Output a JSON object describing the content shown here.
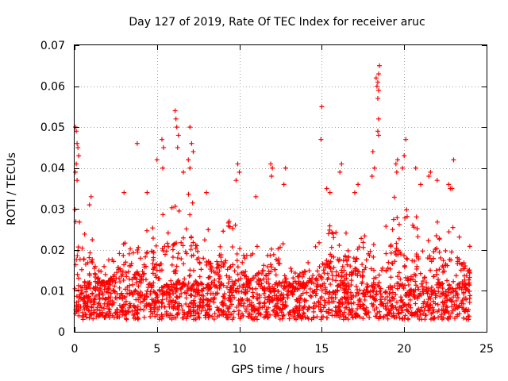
{
  "chart_data": {
    "type": "scatter",
    "title": "Day 127 of 2019, Rate Of TEC Index for receiver aruc",
    "xlabel": "GPS time / hours",
    "ylabel": "ROTI / TECUs",
    "xlim": [
      0,
      25
    ],
    "ylim": [
      0,
      0.07
    ],
    "x_ticks": [
      "0",
      "5",
      "10",
      "15",
      "20",
      "25"
    ],
    "y_ticks": [
      "0",
      "0.01",
      "0.02",
      "0.03",
      "0.04",
      "0.05",
      "0.06",
      "0.07"
    ],
    "grid": true,
    "marker": "+",
    "color": "#ff0000",
    "coverage_x": [
      0,
      24
    ],
    "baseline_band": [
      0.003,
      0.012
    ],
    "envelope": [
      [
        0.0,
        0.035
      ],
      [
        0.5,
        0.03
      ],
      [
        1.0,
        0.028
      ],
      [
        1.5,
        0.018
      ],
      [
        2.0,
        0.017
      ],
      [
        2.5,
        0.022
      ],
      [
        3.0,
        0.025
      ],
      [
        3.5,
        0.024
      ],
      [
        4.0,
        0.02
      ],
      [
        4.5,
        0.03
      ],
      [
        5.0,
        0.027
      ],
      [
        5.5,
        0.031
      ],
      [
        6.0,
        0.032
      ],
      [
        6.5,
        0.033
      ],
      [
        7.0,
        0.034
      ],
      [
        7.5,
        0.03
      ],
      [
        8.0,
        0.026
      ],
      [
        8.5,
        0.025
      ],
      [
        9.0,
        0.028
      ],
      [
        9.5,
        0.027
      ],
      [
        10.0,
        0.03
      ],
      [
        10.5,
        0.018
      ],
      [
        11.0,
        0.021
      ],
      [
        11.5,
        0.024
      ],
      [
        12.0,
        0.032
      ],
      [
        12.5,
        0.025
      ],
      [
        13.0,
        0.016
      ],
      [
        13.5,
        0.014
      ],
      [
        14.0,
        0.016
      ],
      [
        14.5,
        0.02
      ],
      [
        15.0,
        0.025
      ],
      [
        15.5,
        0.026
      ],
      [
        16.0,
        0.028
      ],
      [
        16.5,
        0.027
      ],
      [
        17.0,
        0.026
      ],
      [
        17.5,
        0.024
      ],
      [
        18.0,
        0.03
      ],
      [
        18.5,
        0.028
      ],
      [
        19.0,
        0.029
      ],
      [
        19.5,
        0.034
      ],
      [
        20.0,
        0.031
      ],
      [
        20.5,
        0.03
      ],
      [
        21.0,
        0.028
      ],
      [
        21.5,
        0.03
      ],
      [
        22.0,
        0.029
      ],
      [
        22.5,
        0.026
      ],
      [
        23.0,
        0.027
      ],
      [
        23.5,
        0.025
      ],
      [
        24.0,
        0.022
      ]
    ],
    "outliers": [
      {
        "x": 0.05,
        "y": 0.05
      },
      {
        "x": 0.1,
        "y": 0.049
      },
      {
        "x": 0.15,
        "y": 0.046
      },
      {
        "x": 0.2,
        "y": 0.045
      },
      {
        "x": 0.25,
        "y": 0.043
      },
      {
        "x": 0.1,
        "y": 0.041
      },
      {
        "x": 0.05,
        "y": 0.039
      },
      {
        "x": 0.15,
        "y": 0.037
      },
      {
        "x": 1.0,
        "y": 0.033
      },
      {
        "x": 0.9,
        "y": 0.031
      },
      {
        "x": 3.0,
        "y": 0.034
      },
      {
        "x": 3.8,
        "y": 0.046
      },
      {
        "x": 4.4,
        "y": 0.034
      },
      {
        "x": 5.0,
        "y": 0.042
      },
      {
        "x": 5.3,
        "y": 0.047
      },
      {
        "x": 5.4,
        "y": 0.045
      },
      {
        "x": 5.35,
        "y": 0.04
      },
      {
        "x": 6.1,
        "y": 0.054
      },
      {
        "x": 6.15,
        "y": 0.052
      },
      {
        "x": 6.2,
        "y": 0.05
      },
      {
        "x": 6.3,
        "y": 0.048
      },
      {
        "x": 6.25,
        "y": 0.045
      },
      {
        "x": 7.0,
        "y": 0.05
      },
      {
        "x": 7.1,
        "y": 0.046
      },
      {
        "x": 7.2,
        "y": 0.044
      },
      {
        "x": 6.9,
        "y": 0.042
      },
      {
        "x": 7.0,
        "y": 0.04
      },
      {
        "x": 6.6,
        "y": 0.039
      },
      {
        "x": 8.0,
        "y": 0.034
      },
      {
        "x": 9.9,
        "y": 0.041
      },
      {
        "x": 10.0,
        "y": 0.039
      },
      {
        "x": 9.8,
        "y": 0.037
      },
      {
        "x": 11.0,
        "y": 0.033
      },
      {
        "x": 11.9,
        "y": 0.041
      },
      {
        "x": 12.0,
        "y": 0.04
      },
      {
        "x": 11.95,
        "y": 0.038
      },
      {
        "x": 12.8,
        "y": 0.04
      },
      {
        "x": 12.7,
        "y": 0.036
      },
      {
        "x": 15.0,
        "y": 0.055
      },
      {
        "x": 14.95,
        "y": 0.047
      },
      {
        "x": 15.3,
        "y": 0.035
      },
      {
        "x": 15.5,
        "y": 0.034
      },
      {
        "x": 16.2,
        "y": 0.041
      },
      {
        "x": 16.1,
        "y": 0.039
      },
      {
        "x": 17.2,
        "y": 0.036
      },
      {
        "x": 17.0,
        "y": 0.034
      },
      {
        "x": 18.1,
        "y": 0.044
      },
      {
        "x": 18.2,
        "y": 0.04
      },
      {
        "x": 18.05,
        "y": 0.038
      },
      {
        "x": 18.3,
        "y": 0.062
      },
      {
        "x": 18.4,
        "y": 0.061
      },
      {
        "x": 18.35,
        "y": 0.06
      },
      {
        "x": 18.5,
        "y": 0.065
      },
      {
        "x": 18.45,
        "y": 0.063
      },
      {
        "x": 18.45,
        "y": 0.059
      },
      {
        "x": 18.4,
        "y": 0.057
      },
      {
        "x": 18.45,
        "y": 0.052
      },
      {
        "x": 18.4,
        "y": 0.049
      },
      {
        "x": 18.45,
        "y": 0.048
      },
      {
        "x": 19.6,
        "y": 0.042
      },
      {
        "x": 19.5,
        "y": 0.041
      },
      {
        "x": 19.55,
        "y": 0.039
      },
      {
        "x": 20.1,
        "y": 0.047
      },
      {
        "x": 20.0,
        "y": 0.043
      },
      {
        "x": 19.9,
        "y": 0.04
      },
      {
        "x": 20.7,
        "y": 0.04
      },
      {
        "x": 21.0,
        "y": 0.036
      },
      {
        "x": 21.5,
        "y": 0.038
      },
      {
        "x": 21.6,
        "y": 0.039
      },
      {
        "x": 22.0,
        "y": 0.037
      },
      {
        "x": 22.7,
        "y": 0.036
      },
      {
        "x": 22.8,
        "y": 0.035
      },
      {
        "x": 22.9,
        "y": 0.035
      },
      {
        "x": 23.0,
        "y": 0.042
      }
    ],
    "n_background_points": 2200
  }
}
